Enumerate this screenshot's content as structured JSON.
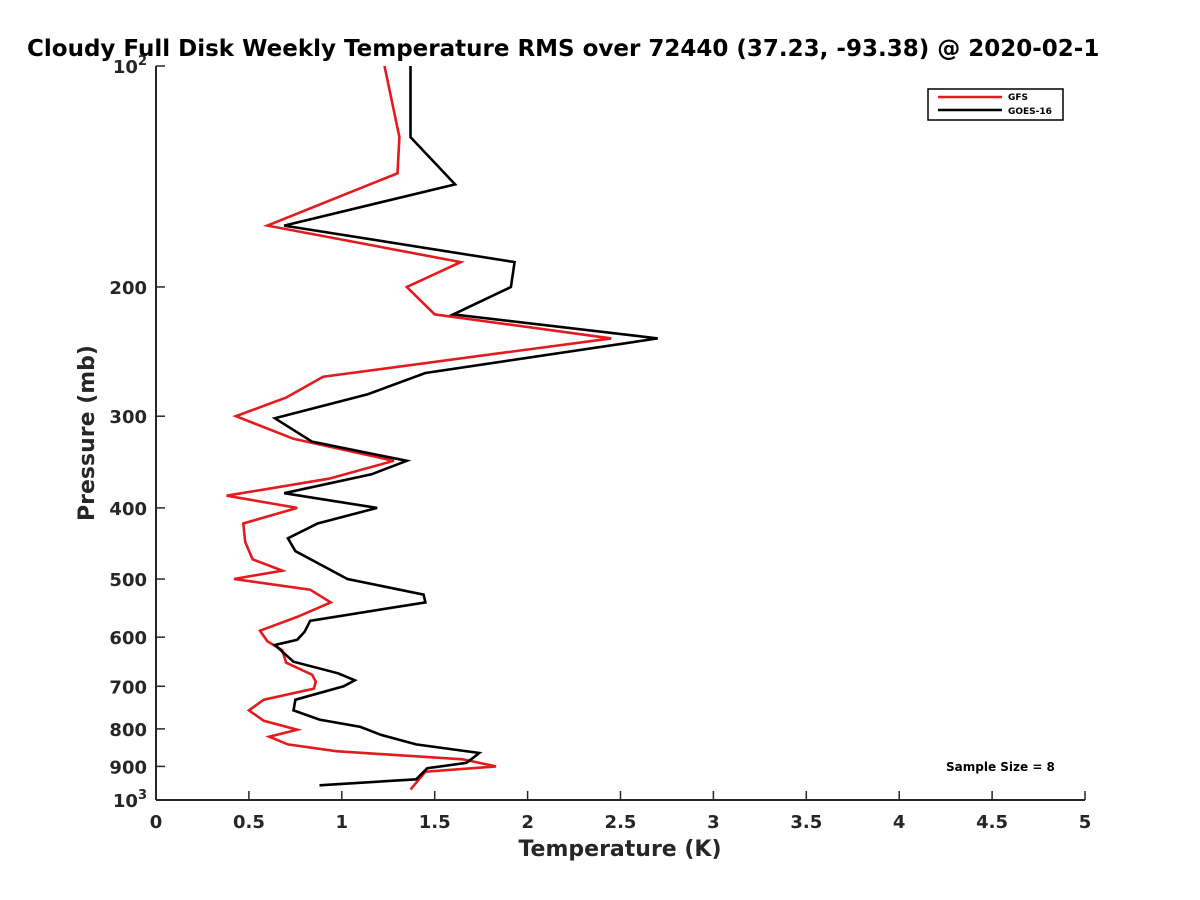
{
  "chart_data": {
    "type": "line",
    "title": "Cloudy Full Disk Weekly Temperature RMS over 72440 (37.23, -93.38) @ 2020-02-1",
    "xlabel": "Temperature (K)",
    "ylabel": "Pressure (mb)",
    "xlim": [
      0,
      5
    ],
    "ylim": [
      100,
      1000
    ],
    "y_scale": "log",
    "y_reversed": true,
    "grid": false,
    "legend_position": "top-right",
    "x_ticks": [
      "0",
      "0.5",
      "1",
      "1.5",
      "2",
      "2.5",
      "3",
      "3.5",
      "4",
      "4.5",
      "5"
    ],
    "y_ticks": [
      {
        "value": 100,
        "base": "10",
        "exp": "2"
      },
      {
        "value": 200,
        "label": "200"
      },
      {
        "value": 300,
        "label": "300"
      },
      {
        "value": 400,
        "label": "400"
      },
      {
        "value": 500,
        "label": "500"
      },
      {
        "value": 600,
        "label": "600"
      },
      {
        "value": 700,
        "label": "700"
      },
      {
        "value": 800,
        "label": "800"
      },
      {
        "value": 900,
        "label": "900"
      },
      {
        "value": 1000,
        "base": "10",
        "exp": "3"
      }
    ],
    "annotation": "Sample Size = 8",
    "series": [
      {
        "name": "GFS",
        "color": "#e41a1c",
        "points": [
          {
            "x": 1.23,
            "p": 100
          },
          {
            "x": 1.31,
            "p": 125
          },
          {
            "x": 1.3,
            "p": 140
          },
          {
            "x": 0.6,
            "p": 165
          },
          {
            "x": 1.64,
            "p": 185
          },
          {
            "x": 1.35,
            "p": 200
          },
          {
            "x": 1.5,
            "p": 218
          },
          {
            "x": 2.45,
            "p": 235
          },
          {
            "x": 0.9,
            "p": 265
          },
          {
            "x": 0.7,
            "p": 283
          },
          {
            "x": 0.43,
            "p": 300
          },
          {
            "x": 0.74,
            "p": 322
          },
          {
            "x": 1.28,
            "p": 345
          },
          {
            "x": 0.93,
            "p": 365
          },
          {
            "x": 0.38,
            "p": 385
          },
          {
            "x": 0.76,
            "p": 400
          },
          {
            "x": 0.47,
            "p": 420
          },
          {
            "x": 0.48,
            "p": 445
          },
          {
            "x": 0.52,
            "p": 470
          },
          {
            "x": 0.68,
            "p": 487
          },
          {
            "x": 0.42,
            "p": 500
          },
          {
            "x": 0.83,
            "p": 517
          },
          {
            "x": 0.94,
            "p": 538
          },
          {
            "x": 0.76,
            "p": 563
          },
          {
            "x": 0.56,
            "p": 588
          },
          {
            "x": 0.6,
            "p": 608
          },
          {
            "x": 0.68,
            "p": 625
          },
          {
            "x": 0.7,
            "p": 650
          },
          {
            "x": 0.84,
            "p": 675
          },
          {
            "x": 0.86,
            "p": 690
          },
          {
            "x": 0.85,
            "p": 705
          },
          {
            "x": 0.58,
            "p": 730
          },
          {
            "x": 0.5,
            "p": 755
          },
          {
            "x": 0.58,
            "p": 780
          },
          {
            "x": 0.76,
            "p": 802
          },
          {
            "x": 0.61,
            "p": 820
          },
          {
            "x": 0.71,
            "p": 840
          },
          {
            "x": 0.97,
            "p": 858
          },
          {
            "x": 1.65,
            "p": 880
          },
          {
            "x": 1.83,
            "p": 900
          },
          {
            "x": 1.45,
            "p": 915
          },
          {
            "x": 1.37,
            "p": 968
          }
        ]
      },
      {
        "name": "GOES-16",
        "color": "#000000",
        "points": [
          {
            "x": 1.37,
            "p": 100
          },
          {
            "x": 1.37,
            "p": 125
          },
          {
            "x": 1.61,
            "p": 145
          },
          {
            "x": 0.69,
            "p": 165
          },
          {
            "x": 1.93,
            "p": 185
          },
          {
            "x": 1.91,
            "p": 200
          },
          {
            "x": 1.6,
            "p": 218
          },
          {
            "x": 2.7,
            "p": 235
          },
          {
            "x": 1.45,
            "p": 262
          },
          {
            "x": 1.14,
            "p": 280
          },
          {
            "x": 0.64,
            "p": 302
          },
          {
            "x": 0.84,
            "p": 325
          },
          {
            "x": 1.35,
            "p": 345
          },
          {
            "x": 1.16,
            "p": 360
          },
          {
            "x": 0.69,
            "p": 382
          },
          {
            "x": 1.19,
            "p": 400
          },
          {
            "x": 0.87,
            "p": 420
          },
          {
            "x": 0.71,
            "p": 440
          },
          {
            "x": 0.75,
            "p": 458
          },
          {
            "x": 0.92,
            "p": 483
          },
          {
            "x": 1.03,
            "p": 500
          },
          {
            "x": 1.44,
            "p": 525
          },
          {
            "x": 1.45,
            "p": 538
          },
          {
            "x": 0.83,
            "p": 570
          },
          {
            "x": 0.8,
            "p": 590
          },
          {
            "x": 0.76,
            "p": 605
          },
          {
            "x": 0.64,
            "p": 615
          },
          {
            "x": 0.74,
            "p": 648
          },
          {
            "x": 0.98,
            "p": 672
          },
          {
            "x": 1.07,
            "p": 687
          },
          {
            "x": 1.01,
            "p": 700
          },
          {
            "x": 0.75,
            "p": 730
          },
          {
            "x": 0.74,
            "p": 755
          },
          {
            "x": 0.88,
            "p": 777
          },
          {
            "x": 1.1,
            "p": 795
          },
          {
            "x": 1.21,
            "p": 815
          },
          {
            "x": 1.4,
            "p": 840
          },
          {
            "x": 1.74,
            "p": 863
          },
          {
            "x": 1.71,
            "p": 875
          },
          {
            "x": 1.67,
            "p": 890
          },
          {
            "x": 1.46,
            "p": 905
          },
          {
            "x": 1.4,
            "p": 937
          },
          {
            "x": 0.88,
            "p": 955
          }
        ]
      }
    ]
  }
}
